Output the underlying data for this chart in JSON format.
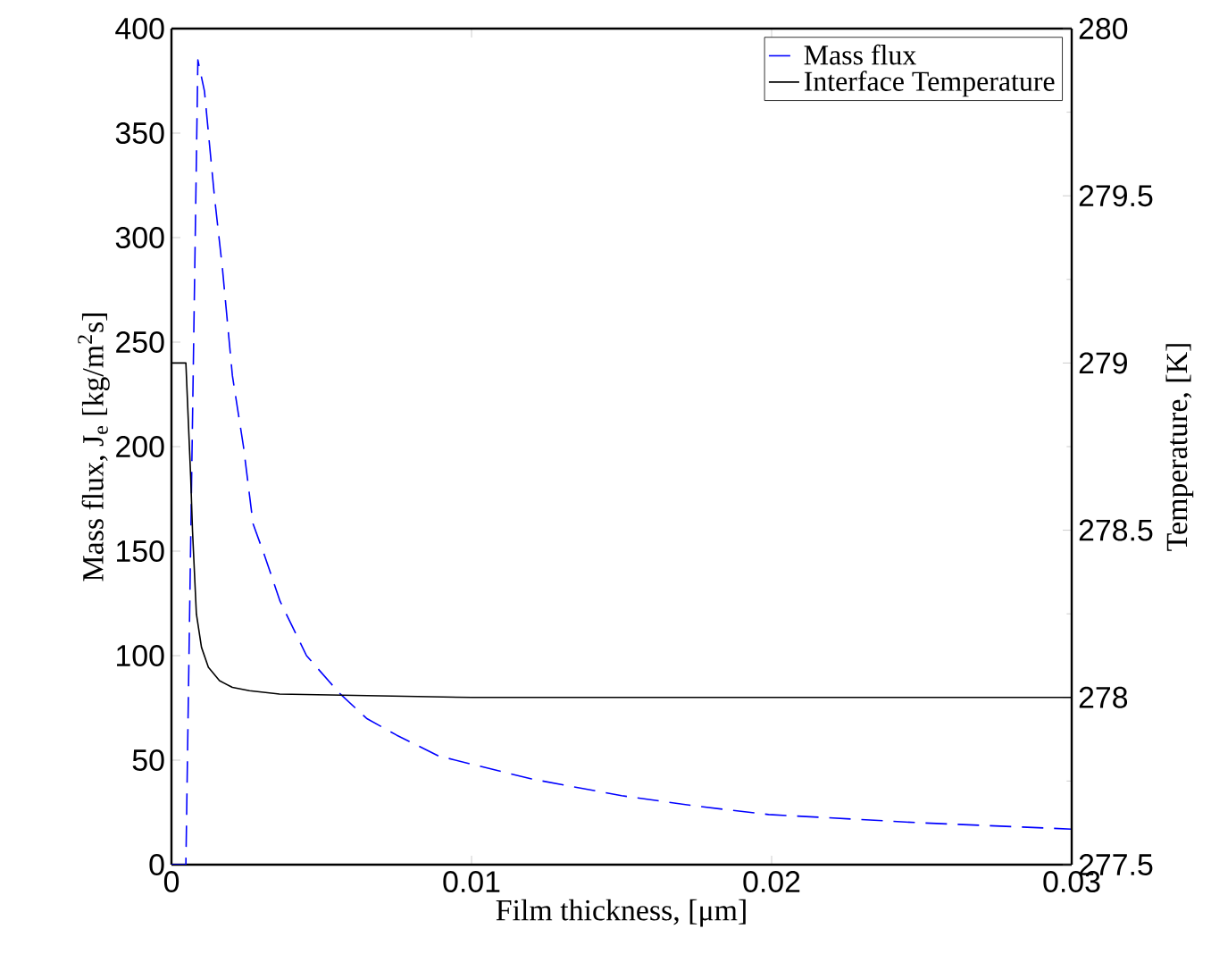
{
  "chart_data": {
    "type": "line",
    "xlabel": "Film thickness, [μm]",
    "ylabel": "Mass flux, J$_{e}$ [kg/m$^{2}$s]",
    "y2label": "Temperature, [K]",
    "xlim": [
      0,
      0.03
    ],
    "xticks": [
      0,
      0.01,
      0.02,
      0.03
    ],
    "ylim": [
      0,
      400
    ],
    "yticks": [
      0,
      50,
      100,
      150,
      200,
      250,
      300,
      350,
      400
    ],
    "y2lim": [
      277.5,
      280
    ],
    "y2ticks": [
      277.5,
      278,
      278.5,
      279,
      279.5,
      280
    ],
    "legend": "top right",
    "grid": false,
    "series": [
      {
        "name": "Mass flux",
        "color": "#0000ff",
        "line_style": "dashed",
        "x": [
          0,
          0.00048,
          0.00088,
          0.0011,
          0.00143,
          0.0017,
          0.00203,
          0.0024,
          0.00272,
          0.0031,
          0.00362,
          0.0045,
          0.0056,
          0.0065,
          0.0075,
          0.0089,
          0.012,
          0.015,
          0.0175,
          0.0199,
          0.025,
          0.03
        ],
        "values": [
          0,
          0,
          385,
          370,
          320,
          285,
          234,
          200,
          163,
          148,
          126,
          100,
          82,
          70,
          62,
          52,
          41,
          33,
          28,
          24,
          20,
          17
        ]
      },
      {
        "name": "Interface Temperature",
        "color": "#000000",
        "line_style": "solid",
        "axis": "y2",
        "x": [
          0,
          0.00048,
          0.00064,
          0.0007,
          0.00083,
          0.001,
          0.00123,
          0.0016,
          0.00203,
          0.0026,
          0.0036,
          0.01,
          0.03
        ],
        "values": [
          279,
          279,
          278.66,
          278.5,
          278.25,
          278.15,
          278.09,
          278.05,
          278.03,
          278.02,
          278.01,
          278,
          278
        ]
      }
    ]
  }
}
